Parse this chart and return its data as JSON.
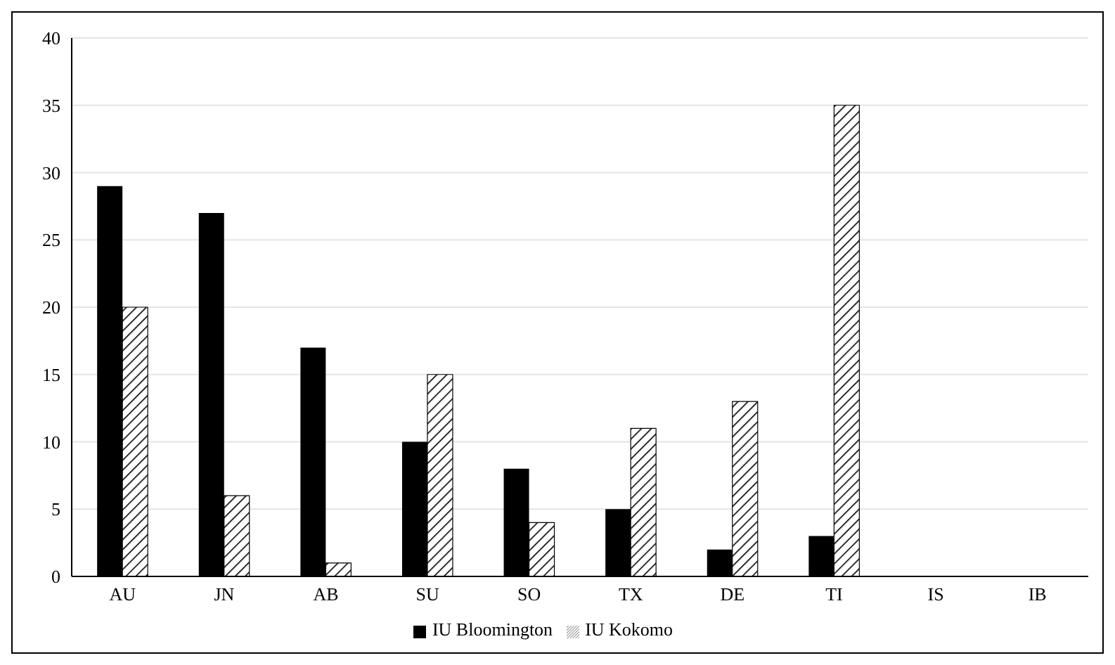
{
  "chart_data": {
    "type": "bar",
    "categories": [
      "AU",
      "JN",
      "AB",
      "SU",
      "SO",
      "TX",
      "DE",
      "TI",
      "IS",
      "IB"
    ],
    "series": [
      {
        "name": "IU Bloomington",
        "color": "#000000",
        "values": [
          29,
          27,
          17,
          10,
          8,
          5,
          2,
          3,
          0,
          0
        ]
      },
      {
        "name": "IU Kokomo",
        "color": "#000000",
        "values": [
          20,
          6,
          1,
          15,
          4,
          11,
          13,
          35,
          0,
          0
        ]
      }
    ],
    "ylim": [
      0,
      40
    ],
    "yticks": [
      0,
      5,
      10,
      15,
      20,
      25,
      30,
      35,
      40
    ],
    "grid": "y",
    "legend": "bottom"
  }
}
